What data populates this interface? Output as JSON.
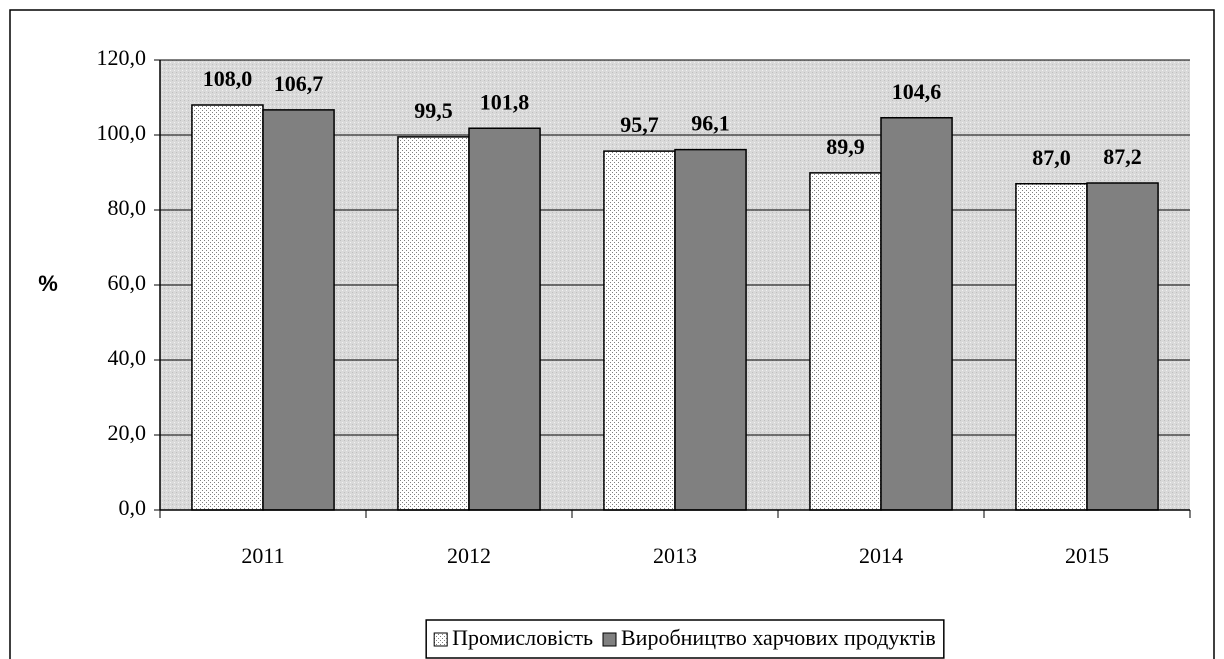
{
  "chart_data": {
    "type": "bar",
    "y_label": "%",
    "categories": [
      "2011",
      "2012",
      "2013",
      "2014",
      "2015"
    ],
    "series": [
      {
        "name": "Промисловість",
        "color": "#ffffff",
        "values": [
          108.0,
          99.5,
          95.7,
          89.9,
          87.0
        ],
        "value_labels": [
          "108,0",
          "99,5",
          "95,7",
          "89,9",
          "87,0"
        ]
      },
      {
        "name": "Виробництво харчових продуктів",
        "color": "#808080",
        "values": [
          106.7,
          101.8,
          96.1,
          104.6,
          87.2
        ],
        "value_labels": [
          "106,7",
          "101,8",
          "96,1",
          "104,6",
          "87,2"
        ]
      }
    ],
    "ylim": [
      0,
      120
    ],
    "yticks": [
      {
        "value": 0,
        "label": "0,0"
      },
      {
        "value": 20,
        "label": "20,0"
      },
      {
        "value": 40,
        "label": "40,0"
      },
      {
        "value": 60,
        "label": "60,0"
      },
      {
        "value": 80,
        "label": "80,0"
      },
      {
        "value": 100,
        "label": "100,0"
      },
      {
        "value": 120,
        "label": "120,0"
      }
    ],
    "grid": true,
    "legend": "bottom"
  }
}
